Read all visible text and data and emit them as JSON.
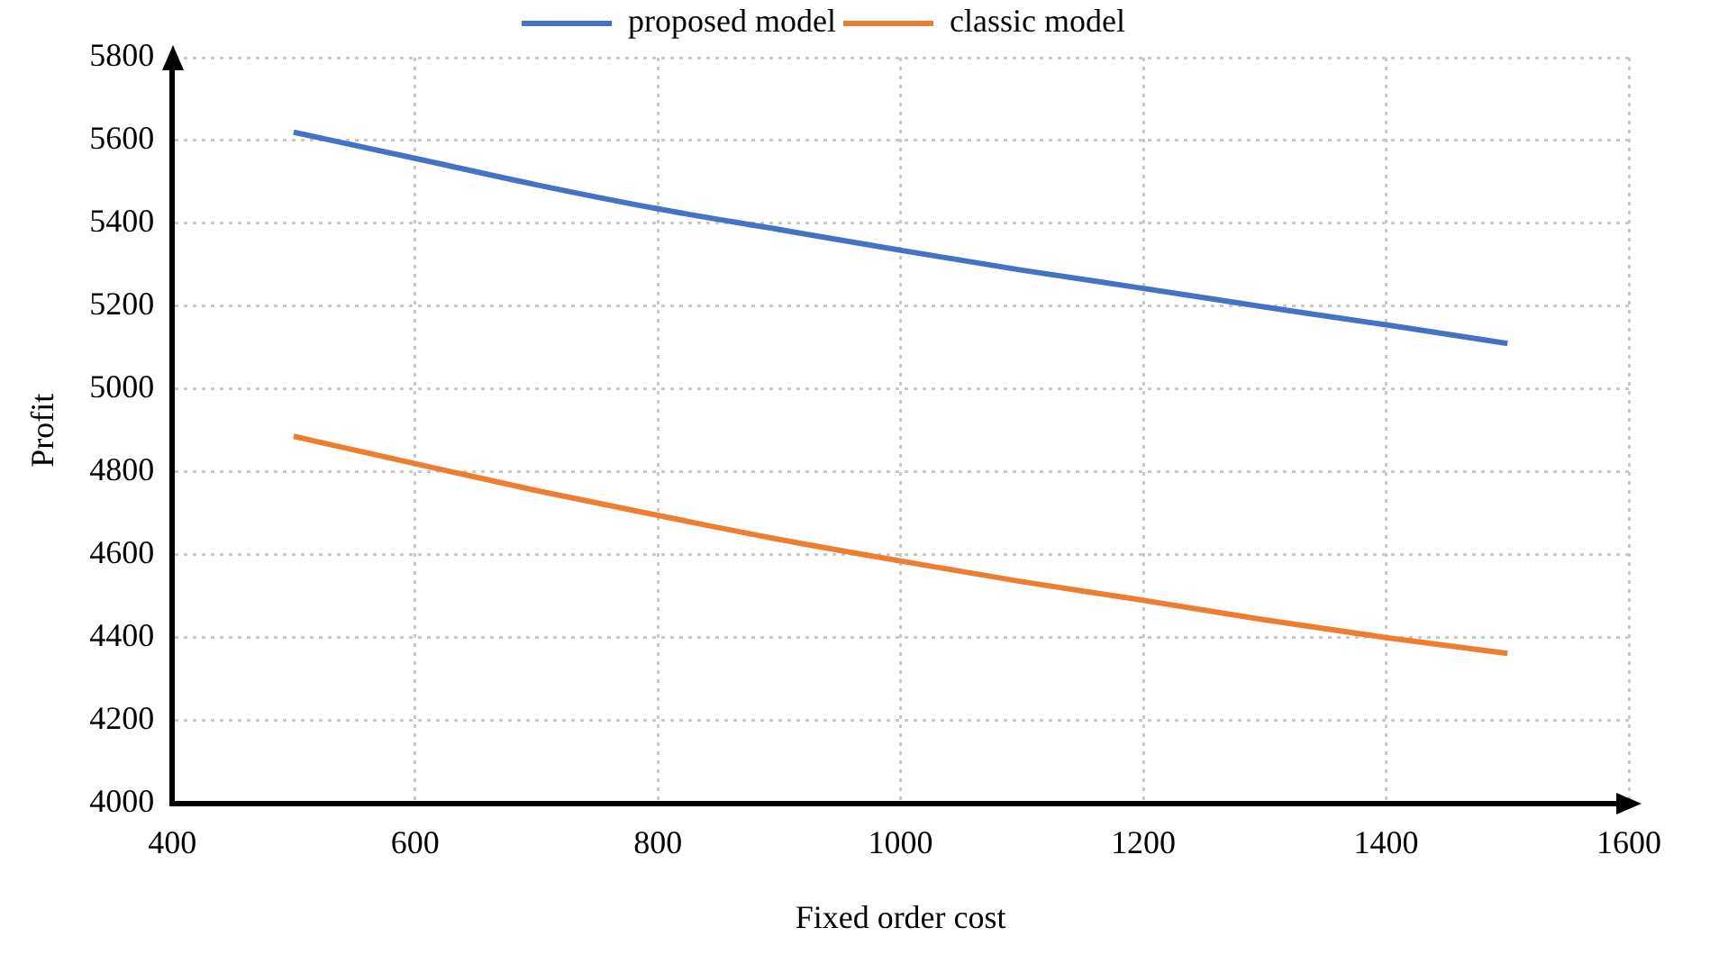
{
  "chart_data": {
    "type": "line",
    "xlabel": "Fixed order cost",
    "ylabel": "Profit",
    "x": [
      500,
      600,
      700,
      800,
      900,
      1000,
      1100,
      1200,
      1300,
      1400,
      1500
    ],
    "series": [
      {
        "name": "proposed model",
        "color": "#4472c4",
        "values": [
          5620,
          5557,
          5493,
          5435,
          5385,
          5335,
          5287,
          5243,
          5198,
          5155,
          5110
        ]
      },
      {
        "name": "classic model",
        "color": "#ed7d31",
        "values": [
          4886,
          4820,
          4755,
          4695,
          4637,
          4585,
          4535,
          4490,
          4443,
          4400,
          4362
        ]
      }
    ],
    "xlim": [
      400,
      1600
    ],
    "xticks": [
      400,
      600,
      800,
      1000,
      1200,
      1400,
      1600
    ],
    "ylim": [
      4000,
      5800
    ],
    "yticks": [
      4000,
      4200,
      4400,
      4600,
      4800,
      5000,
      5200,
      5400,
      5600,
      5800
    ],
    "grid": true,
    "legend": "top",
    "marker": "none",
    "line_style": "solid"
  }
}
